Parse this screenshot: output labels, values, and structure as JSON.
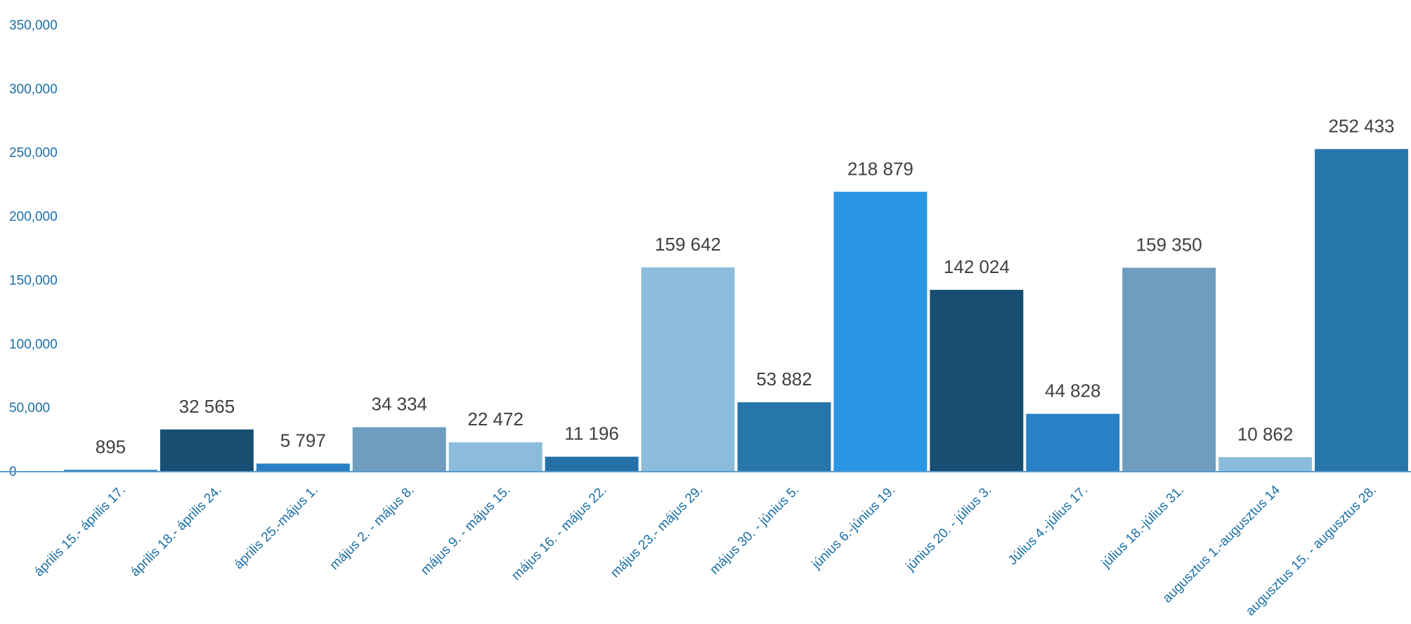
{
  "chart_data": {
    "type": "bar",
    "title": "",
    "xlabel": "",
    "ylabel": "",
    "ylim": [
      0,
      350000
    ],
    "yticks": [
      0,
      50000,
      100000,
      150000,
      200000,
      250000,
      300000,
      350000
    ],
    "ytick_labels": [
      "0",
      "50,000",
      "100,000",
      "150,000",
      "200,000",
      "250,000",
      "300,000",
      "350,000"
    ],
    "grid": false,
    "legend": "none",
    "categories": [
      "április 15.- április 17.",
      "április 18.- április 24.",
      "április 25.-május 1.",
      "május 2. - május 8.",
      "május 9. - május 15.",
      "május 16. - május 22.",
      "május 23.- május 29.",
      "május 30. - június 5.",
      "június 6.-június 19.",
      "június 20. - július 3.",
      "Július 4.-július 17.",
      "július 18.-július 31.",
      "augusztus 1.-augusztus 14",
      "augusztus 15. - augusztus 28."
    ],
    "values": [
      895,
      32565,
      5797,
      34334,
      22472,
      11196,
      159642,
      53882,
      218879,
      142024,
      44828,
      159350,
      10862,
      252433
    ],
    "data_labels": [
      "895",
      "32 565",
      "5 797",
      "34 334",
      "22 472",
      "11 196",
      "159 642",
      "53 882",
      "218 879",
      "142 024",
      "44 828",
      "159 350",
      "10 862",
      "252 433"
    ],
    "bar_colors": [
      "#2980c4",
      "#174e72",
      "#2980c4",
      "#6e9dbe",
      "#8bbcdc",
      "#2570a8",
      "#8bbcdc",
      "#2776aa",
      "#2896e2",
      "#174e72",
      "#2980c4",
      "#6e9dbe",
      "#8bbcdc",
      "#2776aa"
    ],
    "colors": {
      "tick_text": "#1a6fa6",
      "label_text": "#404040",
      "baseline": "#5b9bc9"
    }
  }
}
